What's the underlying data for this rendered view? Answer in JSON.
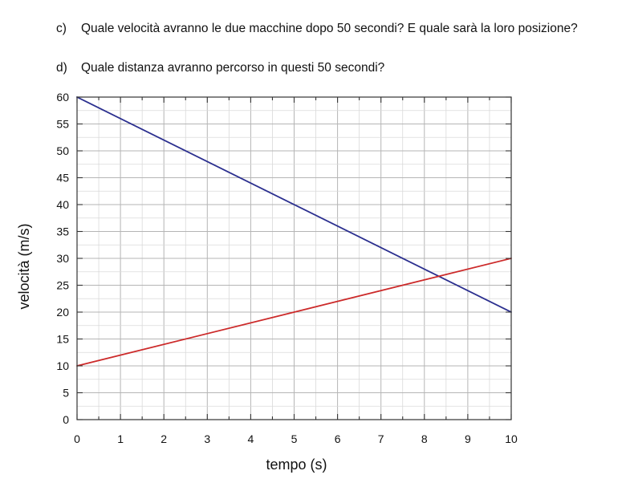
{
  "questions": [
    {
      "letter": "c)",
      "text": "Quale velocità avranno le due macchine dopo 50 secondi? E quale sarà la loro posizione?"
    },
    {
      "letter": "d)",
      "text": "Quale distanza avranno percorso in questi 50 secondi?"
    }
  ],
  "chart_data": {
    "type": "line",
    "xlabel": "tempo (s)",
    "ylabel": "velocità (m/s)",
    "xlim": [
      0,
      10
    ],
    "ylim": [
      0,
      60
    ],
    "xticks": [
      0,
      1,
      2,
      3,
      4,
      5,
      6,
      7,
      8,
      9,
      10
    ],
    "yticks": [
      0,
      5,
      10,
      15,
      20,
      25,
      30,
      35,
      40,
      45,
      50,
      55,
      60
    ],
    "grid": true,
    "minor_grid": {
      "x_step": 0.5,
      "y_step": 2.5
    },
    "series": [
      {
        "color": "#2b2f8f",
        "x": [
          0,
          10
        ],
        "y": [
          60,
          20
        ]
      },
      {
        "color": "#cc2a2a",
        "x": [
          0,
          10
        ],
        "y": [
          10,
          30
        ]
      }
    ]
  }
}
